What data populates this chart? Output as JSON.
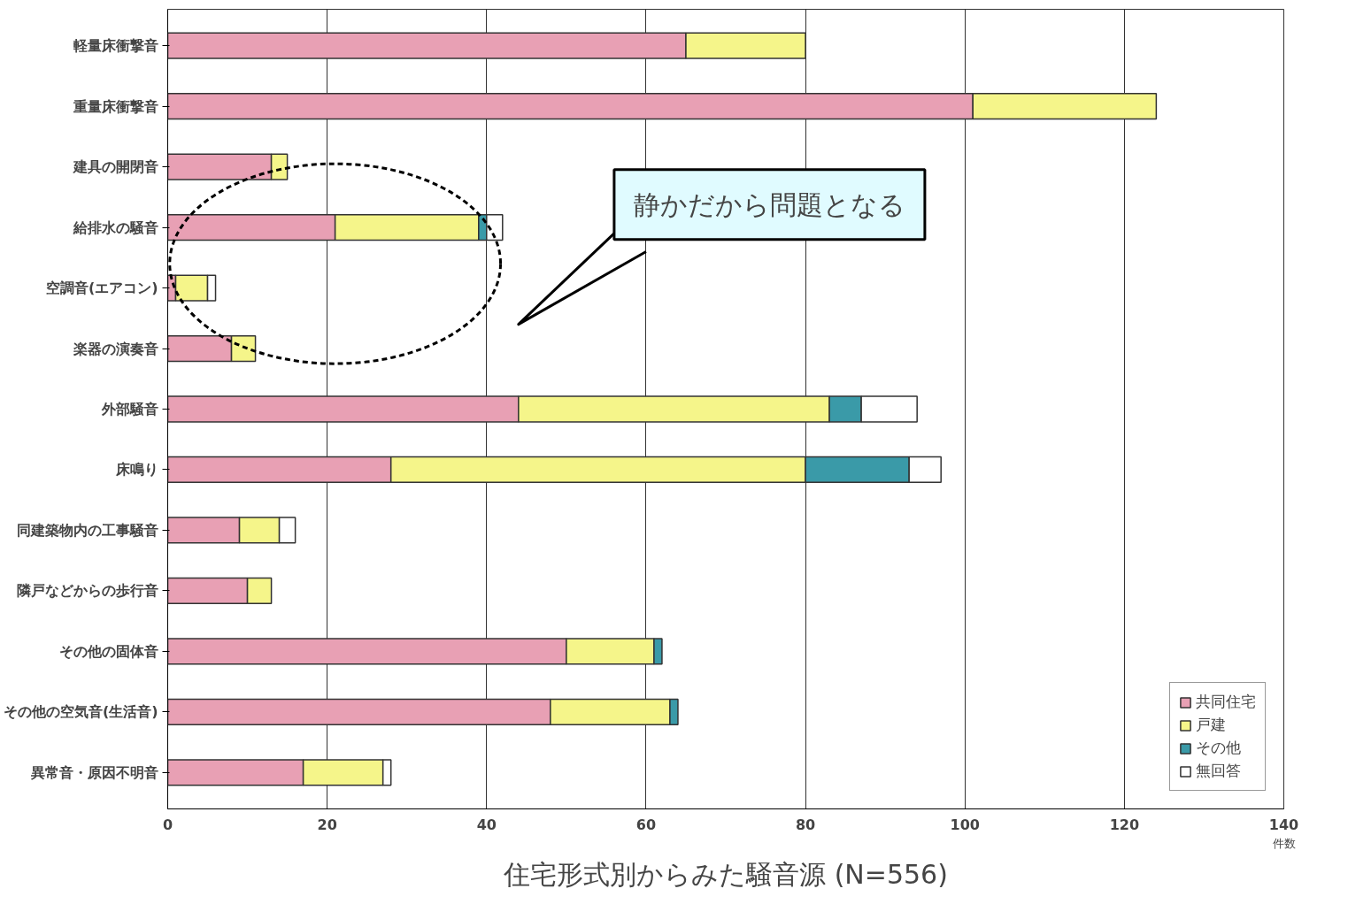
{
  "chart_data": {
    "type": "bar",
    "orientation": "horizontal",
    "stacked": true,
    "title": "住宅形式別からみた騒音源 (N=556)",
    "xlabel": "件数",
    "categories": [
      "軽量床衝撃音",
      "重量床衝撃音",
      "建具の開閉音",
      "給排水の騒音",
      "空調音(エアコン)",
      "楽器の演奏音",
      "外部騒音",
      "床鳴り",
      "同建築物内の工事騒音",
      "隣戸などからの歩行音",
      "その他の固体音",
      "その他の空気音(生活音)",
      "異常音・原因不明音"
    ],
    "series": [
      {
        "name": "共同住宅",
        "color": "#e8a0b4",
        "values": [
          65,
          101,
          13,
          21,
          1,
          8,
          44,
          28,
          9,
          10,
          50,
          48,
          17
        ]
      },
      {
        "name": "戸建",
        "color": "#f5f58a",
        "values": [
          15,
          23,
          2,
          18,
          4,
          3,
          39,
          52,
          5,
          3,
          11,
          15,
          10
        ]
      },
      {
        "name": "その他",
        "color": "#3a9aa8",
        "values": [
          0,
          0,
          0,
          1,
          0,
          0,
          4,
          13,
          0,
          0,
          1,
          1,
          0
        ]
      },
      {
        "name": "無回答",
        "color": "#ffffff",
        "values": [
          0,
          0,
          0,
          2,
          1,
          0,
          7,
          4,
          2,
          0,
          0,
          0,
          1
        ]
      }
    ],
    "xlim": [
      0,
      140
    ],
    "xticks": [
      0,
      20,
      40,
      60,
      80,
      100,
      120,
      140
    ],
    "grid": "x",
    "legend": "bottom right",
    "annotations": [
      "静かだから問題となる"
    ]
  }
}
